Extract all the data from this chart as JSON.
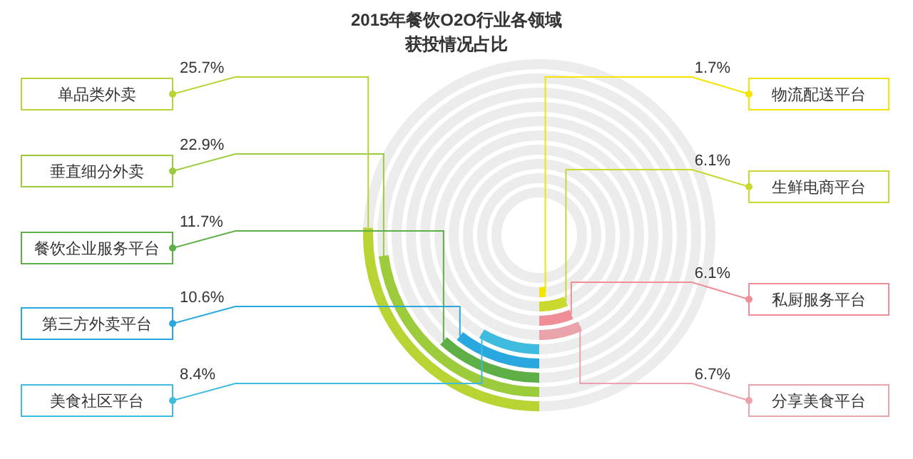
{
  "chart_data": {
    "type": "other",
    "title": "2015年餐饮O2O行业各领域",
    "subtitle": "获投情况占比",
    "value_labels": [
      "25.7%",
      "22.9%",
      "11.7%",
      "10.6%",
      "8.4%",
      "1.7%",
      "6.1%",
      "6.1%",
      "6.7%"
    ],
    "categories": [
      "单品类外卖",
      "垂直细分外卖",
      "餐饮企业服务平台",
      "第三方外卖平台",
      "美食社区平台",
      "物流配送平台",
      "生鲜电商平台",
      "私厨服务平台",
      "分享美食平台"
    ],
    "values": [
      25.7,
      22.9,
      11.7,
      10.6,
      8.4,
      1.7,
      6.1,
      6.1,
      6.7
    ],
    "colors": [
      "#b8d432",
      "#9ccb3b",
      "#5daf46",
      "#29a8df",
      "#3fbbe0",
      "#f3e500",
      "#c9d92f",
      "#f08e98",
      "#eaa3ab"
    ]
  }
}
